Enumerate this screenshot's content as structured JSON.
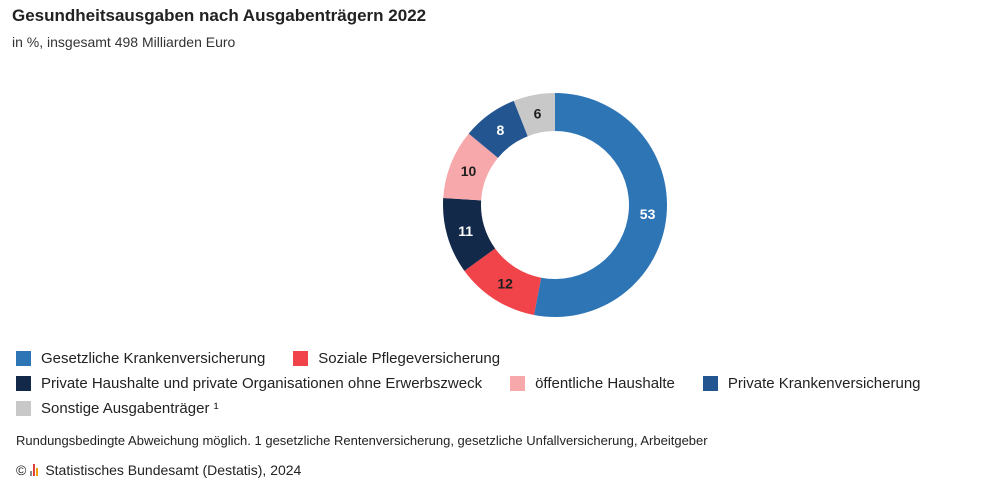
{
  "chart_data": {
    "type": "pie",
    "variant": "donut",
    "title": "Gesundheitsausgaben nach Ausgabenträgern 2022",
    "subtitle": "in %, insgesamt 498 Milliarden Euro",
    "slices": [
      {
        "label": "Gesetzliche Krankenversicherung",
        "value": 53,
        "color": "#2e75b6",
        "text_color": "#ffffff"
      },
      {
        "label": "Soziale Pflegeversicherung",
        "value": 12,
        "color": "#f0434a",
        "text_color": "#1f1f1f"
      },
      {
        "label": "Private Haushalte und private Organisationen ohne Erwerbszweck",
        "value": 11,
        "color": "#12294a",
        "text_color": "#ffffff"
      },
      {
        "label": "öffentliche Haushalte",
        "value": 10,
        "color": "#f7a8ab",
        "text_color": "#1f1f1f"
      },
      {
        "label": "Private Krankenversicherung",
        "value": 8,
        "color": "#235591",
        "text_color": "#ffffff"
      },
      {
        "label": "Sonstige Ausgabenträger ¹",
        "value": 6,
        "color": "#c8c8c8",
        "text_color": "#1f1f1f"
      }
    ],
    "legend_position": "bottom"
  },
  "footnote": "Rundungsbedingte Abweichung möglich. 1 gesetzliche Rentenversicherung, gesetzliche Unfallversicherung, Arbeitgeber",
  "source": {
    "copyright": "©",
    "text": "Statistisches Bundesamt (Destatis), 2024"
  }
}
